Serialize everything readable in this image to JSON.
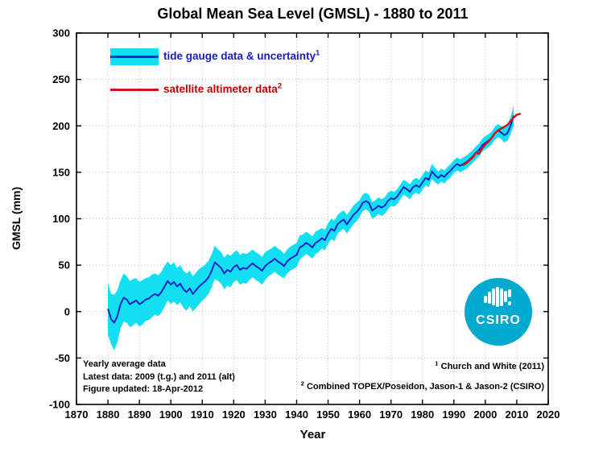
{
  "figure": {
    "title": "Global Mean Sea Level (GMSL) - 1880 to 2011",
    "xlabel": "Year",
    "ylabel": "GMSL (mm)"
  },
  "legend": {
    "tide_gauge_label": "tide gauge data & uncertainty",
    "tide_gauge_sup": "1",
    "satellite_label": "satellite altimeter data",
    "satellite_sup": "2"
  },
  "annotations": {
    "note_line1": "Yearly average data",
    "note_line2": "Latest data: 2009 (t.g.) and 2011 (alt)",
    "note_line3": "Figure updated: 18-Apr-2012",
    "footnote1_sup": "1",
    "footnote1_text": "Church and White (2011)",
    "footnote2_sup": "2",
    "footnote2_text": "Combined TOPEX/Poseidon, Jason-1 & Jason-2 (CSIRO)"
  },
  "logo": {
    "text": "CSIRO",
    "color": "#00a9ce"
  },
  "colors": {
    "band": "#12dff2",
    "tide_line": "#1024c8",
    "satellite_line": "#cf1616",
    "grid": "#b9b9b9",
    "axis": "#000000",
    "legend_tide_text": "#1c1cbe",
    "legend_sat_text": "#c00000"
  },
  "chart_data": {
    "type": "line",
    "title": "Global Mean Sea Level (GMSL) - 1880 to 2011",
    "xlabel": "Year",
    "ylabel": "GMSL (mm)",
    "xlim": [
      1870,
      2020
    ],
    "ylim": [
      -100,
      300
    ],
    "xticks": [
      1870,
      1880,
      1890,
      1900,
      1910,
      1920,
      1930,
      1940,
      1950,
      1960,
      1970,
      1980,
      1990,
      2000,
      2010,
      2020
    ],
    "yticks": [
      300,
      250,
      200,
      150,
      100,
      50,
      0,
      -50,
      -100
    ],
    "grid": "dotted",
    "legend_position": "top-left-inside",
    "series": [
      {
        "name": "tide gauge data & uncertainty",
        "start_year": 1880,
        "end_year": 2009,
        "values": [
          3,
          -8,
          -12,
          -5,
          8,
          15,
          13,
          8,
          10,
          12,
          8,
          10,
          13,
          14,
          17,
          19,
          17,
          21,
          27,
          33,
          29,
          32,
          27,
          30,
          24,
          21,
          25,
          19,
          23,
          27,
          30,
          33,
          37,
          44,
          53,
          50,
          47,
          41,
          45,
          43,
          48,
          50,
          45,
          47,
          46,
          49,
          52,
          49,
          47,
          44,
          49,
          52,
          54,
          57,
          54,
          52,
          49,
          54,
          57,
          59,
          61,
          69,
          71,
          74,
          72,
          69,
          74,
          76,
          79,
          77,
          84,
          89,
          87,
          94,
          97,
          99,
          94,
          99,
          104,
          107,
          111,
          117,
          119,
          117,
          109,
          111,
          114,
          112,
          114,
          119,
          122,
          121,
          124,
          129,
          134,
          132,
          129,
          134,
          136,
          134,
          139,
          144,
          142,
          151,
          147,
          144,
          147,
          145,
          149,
          152,
          156,
          159,
          157,
          159,
          161,
          164,
          167,
          171,
          174,
          179,
          182,
          184,
          187,
          192,
          195,
          193,
          190,
          192,
          200,
          211
        ],
        "uncertainty_halfwidth": [
          28,
          27,
          30,
          28,
          26,
          26,
          25,
          25,
          25,
          24,
          24,
          24,
          23,
          23,
          23,
          22,
          22,
          22,
          22,
          21,
          21,
          21,
          20,
          20,
          20,
          20,
          19,
          19,
          19,
          19,
          18,
          18,
          18,
          18,
          18,
          17,
          17,
          17,
          17,
          17,
          16,
          16,
          16,
          16,
          16,
          15,
          15,
          15,
          15,
          15,
          15,
          14,
          14,
          14,
          14,
          14,
          13,
          13,
          13,
          13,
          13,
          13,
          12,
          12,
          12,
          12,
          12,
          12,
          11,
          11,
          11,
          11,
          11,
          10,
          10,
          10,
          10,
          10,
          10,
          10,
          9,
          9,
          9,
          9,
          9,
          9,
          9,
          9,
          9,
          9,
          8,
          8,
          8,
          8,
          8,
          8,
          8,
          8,
          8,
          8,
          8,
          8,
          8,
          8,
          8,
          7,
          7,
          7,
          7,
          7,
          7,
          7,
          7,
          7,
          7,
          7,
          7,
          7,
          7,
          7,
          7,
          7,
          7,
          7,
          7,
          7,
          8,
          8,
          9,
          11
        ]
      },
      {
        "name": "satellite altimeter data",
        "start_year": 1993,
        "end_year": 2011,
        "values": [
          158,
          160,
          163,
          166,
          171,
          170,
          176,
          180,
          183,
          187,
          192,
          195,
          197,
          199,
          201,
          205,
          209,
          212,
          213
        ]
      }
    ]
  }
}
